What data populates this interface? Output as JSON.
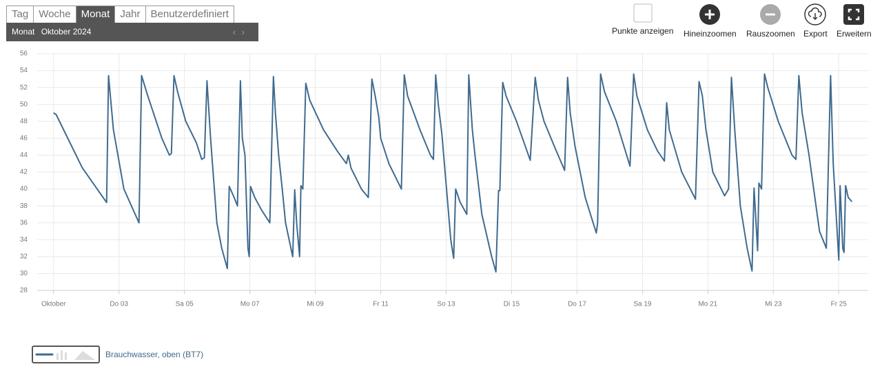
{
  "tabs": [
    {
      "label": "Tag"
    },
    {
      "label": "Woche"
    },
    {
      "label": "Monat",
      "active": true
    },
    {
      "label": "Jahr"
    },
    {
      "label": "Benutzerdefiniert"
    }
  ],
  "period": {
    "unit": "Monat",
    "label": "Oktober 2024"
  },
  "toolbar": [
    "Punkte anzeigen",
    "Hineinzoomen",
    "Rauszoomen",
    "Export",
    "Erweitern"
  ],
  "chart_data": {
    "type": "line",
    "xlim": [
      0.5,
      25.9
    ],
    "ylim": [
      28,
      56
    ],
    "grid": true,
    "xticks": [
      {
        "value": 1,
        "label": "Oktober"
      },
      {
        "value": 3,
        "label": "Do 03"
      },
      {
        "value": 5,
        "label": "Sa 05"
      },
      {
        "value": 7,
        "label": "Mo 07"
      },
      {
        "value": 9,
        "label": "Mi 09"
      },
      {
        "value": 11,
        "label": "Fr 11"
      },
      {
        "value": 13,
        "label": "So 13"
      },
      {
        "value": 15,
        "label": "Di 15"
      },
      {
        "value": 17,
        "label": "Do 17"
      },
      {
        "value": 19,
        "label": "Sa 19"
      },
      {
        "value": 21,
        "label": "Mo 21"
      },
      {
        "value": 23,
        "label": "Mi 23"
      },
      {
        "value": 25,
        "label": "Fr 25"
      }
    ],
    "yticks": [
      28,
      30,
      32,
      34,
      36,
      38,
      40,
      42,
      44,
      46,
      48,
      50,
      52,
      54,
      56
    ],
    "x": [
      1.0,
      1.08,
      1.88,
      2.62,
      2.68,
      2.83,
      3.15,
      3.61,
      3.69,
      3.88,
      4.31,
      4.54,
      4.6,
      4.68,
      4.79,
      5.04,
      5.36,
      5.53,
      5.61,
      5.69,
      5.8,
      5.99,
      6.14,
      6.31,
      6.37,
      6.52,
      6.62,
      6.71,
      6.77,
      6.85,
      6.94,
      6.98,
      7.02,
      7.15,
      7.36,
      7.61,
      7.72,
      7.78,
      7.88,
      7.99,
      8.09,
      8.31,
      8.37,
      8.43,
      8.52,
      8.56,
      8.62,
      8.71,
      8.83,
      9.25,
      9.67,
      9.95,
      10.01,
      10.09,
      10.41,
      10.62,
      10.73,
      10.83,
      10.94,
      11.0,
      11.25,
      11.63,
      11.72,
      11.82,
      12.2,
      12.52,
      12.61,
      12.68,
      12.76,
      12.87,
      13.14,
      13.23,
      13.29,
      13.42,
      13.63,
      13.69,
      13.8,
      13.88,
      14.09,
      14.39,
      14.52,
      14.6,
      14.64,
      14.73,
      14.83,
      15.15,
      15.57,
      15.72,
      15.82,
      15.99,
      16.31,
      16.62,
      16.71,
      16.79,
      16.94,
      17.25,
      17.59,
      17.63,
      17.72,
      17.84,
      18.2,
      18.62,
      18.73,
      18.83,
      19.15,
      19.46,
      19.67,
      19.74,
      19.82,
      20.2,
      20.62,
      20.73,
      20.83,
      20.94,
      21.15,
      21.51,
      21.63,
      21.72,
      21.82,
      21.99,
      22.2,
      22.35,
      22.41,
      22.52,
      22.56,
      22.64,
      22.73,
      22.83,
      23.15,
      23.57,
      23.69,
      23.78,
      23.88,
      24.09,
      24.41,
      24.62,
      24.75,
      24.83,
      25.0,
      25.04,
      25.12,
      25.16,
      25.21,
      25.29,
      25.4
    ],
    "series": [
      {
        "name": "Brauchwasser, oben (BT7)",
        "color": "#3f6a8e",
        "values": [
          49,
          48.8,
          42.5,
          38.4,
          53.4,
          47,
          40,
          36,
          53.4,
          51,
          46,
          44,
          44.2,
          53.4,
          51.5,
          48,
          45.5,
          43.5,
          43.7,
          52.8,
          46,
          36,
          33,
          30.6,
          40.3,
          39,
          38,
          52.8,
          46,
          44,
          33,
          32,
          40.3,
          39,
          37.5,
          36,
          53.3,
          49,
          44,
          40,
          36,
          32,
          39.9,
          36,
          32,
          40.4,
          40,
          52.5,
          50.5,
          47,
          44.5,
          43,
          44,
          42.5,
          40,
          39,
          53,
          51,
          48.5,
          46,
          43,
          40,
          53.5,
          51,
          47,
          44,
          43.5,
          53.5,
          50,
          46.5,
          34,
          31.8,
          40,
          38.5,
          37,
          53.5,
          47,
          44,
          37,
          32,
          30.2,
          39.8,
          39.8,
          52.6,
          51,
          48,
          43.4,
          53.2,
          50.5,
          48,
          45,
          42.2,
          53.2,
          49,
          45,
          39,
          34.8,
          36,
          53.6,
          51.5,
          48,
          42.7,
          53.6,
          51,
          47,
          44.5,
          43.3,
          50.2,
          47,
          42,
          38.8,
          52.7,
          51,
          47,
          42,
          39.2,
          40,
          53.2,
          47,
          38,
          33,
          30.3,
          40.1,
          32.7,
          40.7,
          40,
          53.6,
          52,
          48,
          44,
          43.5,
          53.4,
          49,
          44,
          35,
          33,
          53.4,
          43,
          31.6,
          40.4,
          33,
          32.5,
          40.4,
          39,
          38.5
        ]
      }
    ]
  }
}
